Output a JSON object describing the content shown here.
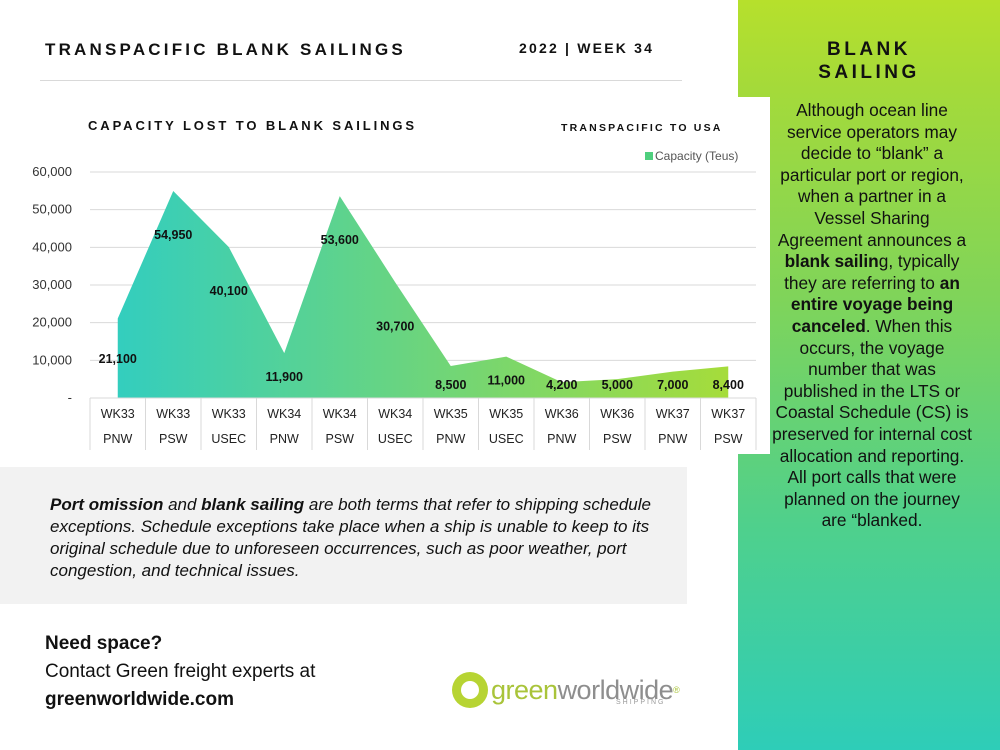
{
  "header": {
    "title": "TRANSPACIFIC BLANK SAILINGS",
    "week": "2022 | WEEK 34"
  },
  "sidebar": {
    "title_line1": "BLANK",
    "title_line2": "SAILING",
    "p1": "Although ocean line service operators may decide to “blank” a particular port or region, when a partner in a Vessel Sharing Agreement announces a ",
    "b1": "blank sailin",
    "p2": "g, typically they are referring to ",
    "b2": "an entire voyage being canceled",
    "p3": ". When this occurs, the voyage number that was published in the LTS or Coastal Schedule (CS) is preserved for internal cost allocation and reporting. All port calls that were planned on the journey are “blanked."
  },
  "chart_data": {
    "type": "area",
    "title": "CAPACITY LOST TO BLANK SAILINGS",
    "subtitle": "TRANSPACIFIC TO USA",
    "legend": "Capacity (Teus)",
    "legend_position": "top-right",
    "categories": [
      [
        "WK33",
        "PNW"
      ],
      [
        "WK33",
        "PSW"
      ],
      [
        "WK33",
        "USEC"
      ],
      [
        "WK34",
        "PNW"
      ],
      [
        "WK34",
        "PSW"
      ],
      [
        "WK34",
        "USEC"
      ],
      [
        "WK35",
        "PNW"
      ],
      [
        "WK35",
        "USEC"
      ],
      [
        "WK36",
        "PNW"
      ],
      [
        "WK36",
        "PSW"
      ],
      [
        "WK37",
        "PNW"
      ],
      [
        "WK37",
        "PSW"
      ]
    ],
    "series": [
      {
        "values": [
          21100,
          54950,
          40100,
          11900,
          53600,
          30700,
          8500,
          11000,
          4200,
          5000,
          7000,
          8400
        ]
      }
    ],
    "data_labels": [
      "21,100",
      "54,950",
      "40,100",
      "11,900",
      "53,600",
      "30,700",
      "8,500",
      "11,000",
      "4,200",
      "5,000",
      "7,000",
      "8,400"
    ],
    "ylim": [
      0,
      60000
    ],
    "y_ticks": [
      {
        "value": 0,
        "label": "-"
      },
      {
        "value": 10000,
        "label": "10,000"
      },
      {
        "value": 20000,
        "label": "20,000"
      },
      {
        "value": 30000,
        "label": "30,000"
      },
      {
        "value": 40000,
        "label": "40,000"
      },
      {
        "value": 50000,
        "label": "50,000"
      },
      {
        "value": 60000,
        "label": "60,000"
      }
    ],
    "grid": true,
    "colors": {
      "start": "#2ecdc4",
      "end": "#a6dc3a"
    }
  },
  "info": {
    "b1": "Port omission",
    "t1": " and ",
    "b2": "blank sailing",
    "t2": " are both terms that refer to shipping schedule exceptions. Schedule exceptions take place when a ship is unable to keep to its original schedule due to unforeseen occurrences, such as poor weather, port congestion, and technical issues."
  },
  "cta": {
    "line1": "Need space?",
    "line2": "Contact Green freight experts at",
    "line3": "greenworldwide.com"
  },
  "logo": {
    "green": "green",
    "dark": "worldwide",
    "reg": "®",
    "tag": "SHIPPING",
    "icon": "green-circle-logo-icon"
  }
}
